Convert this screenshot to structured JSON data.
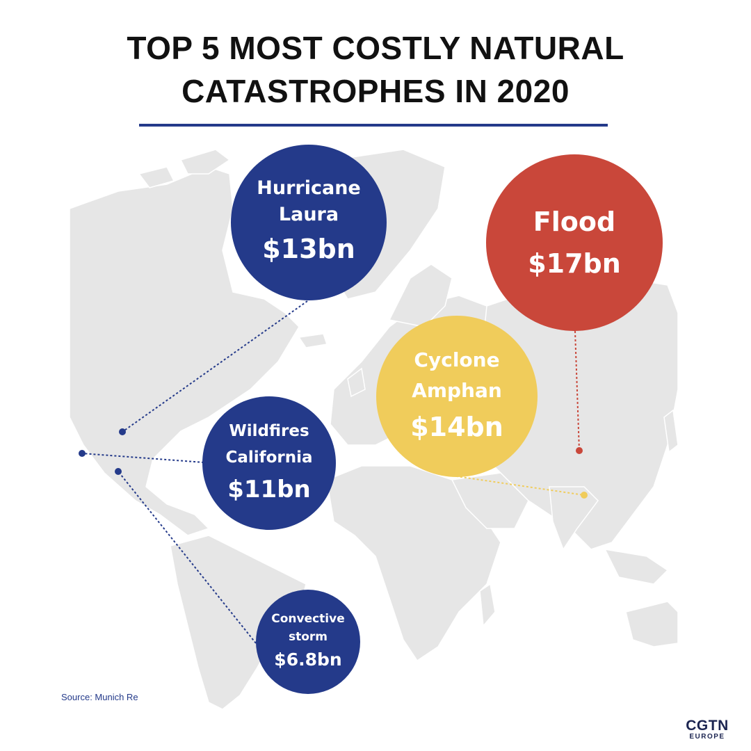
{
  "title": {
    "line1": "TOP 5 MOST COSTLY NATURAL",
    "line2": "CATASTROPHES IN 2020"
  },
  "colors": {
    "navy": "#243a8a",
    "red": "#c9473a",
    "yellow": "#f0cc5b",
    "land": "#e6e6e6"
  },
  "events": [
    {
      "id": "hurricane-laura",
      "name_lines": [
        "Hurricane",
        "Laura"
      ],
      "amount": "$13bn",
      "color": "#243a8a"
    },
    {
      "id": "flood",
      "name_lines": [
        "Flood"
      ],
      "amount": "$17bn",
      "color": "#c9473a"
    },
    {
      "id": "cyclone-amphan",
      "name_lines": [
        "Cyclone",
        "Amphan"
      ],
      "amount": "$14bn",
      "color": "#f0cc5b"
    },
    {
      "id": "wildfires-california",
      "name_lines": [
        "Wildfires",
        "California"
      ],
      "amount": "$11bn",
      "color": "#243a8a"
    },
    {
      "id": "convective-storm",
      "name_lines": [
        "Convective",
        "storm"
      ],
      "amount": "$6.8bn",
      "color": "#243a8a"
    }
  ],
  "source": "Source: Munich Re",
  "logo": {
    "main": "CGTN",
    "sub": "EUROPE"
  }
}
